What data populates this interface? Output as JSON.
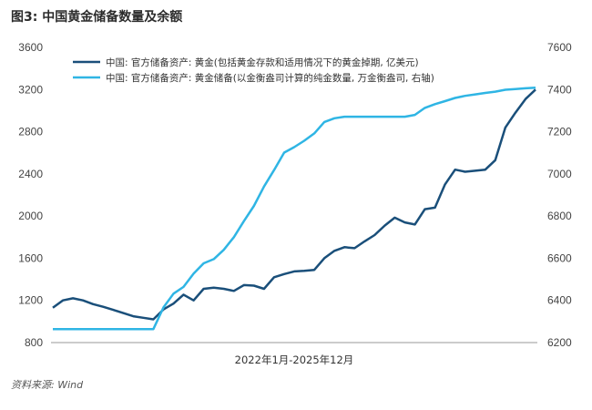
{
  "figure": {
    "title": "图3: 中国黄金储备数量及余额",
    "source": "资料来源: Wind"
  },
  "chart_data": {
    "type": "line",
    "xlabel": "2022年1月-2025年12月",
    "left_axis": {
      "ylim": [
        800,
        3600
      ],
      "ticks": [
        "800",
        "1200",
        "1600",
        "2000",
        "2400",
        "2800",
        "3200",
        "3600"
      ]
    },
    "right_axis": {
      "ylim": [
        6200,
        7600
      ],
      "ticks": [
        "6200",
        "6400",
        "6600",
        "6800",
        "7000",
        "7200",
        "7400",
        "7600"
      ]
    },
    "grid": false,
    "legend": "top-center",
    "series": [
      {
        "name": "中国: 官方储备资产: 黄金(包括黄金存款和适用情况下的黄金掉期, 亿美元)",
        "axis": "left",
        "color": "#1a4f7a",
        "values": [
          1130,
          1200,
          1220,
          1200,
          1165,
          1140,
          1110,
          1080,
          1050,
          1035,
          1020,
          1115,
          1170,
          1255,
          1200,
          1310,
          1320,
          1310,
          1290,
          1345,
          1340,
          1310,
          1420,
          1450,
          1475,
          1480,
          1490,
          1600,
          1670,
          1705,
          1695,
          1760,
          1820,
          1910,
          1985,
          1940,
          1920,
          2065,
          2080,
          2300,
          2440,
          2420,
          2430,
          2440,
          2530,
          2840,
          2980,
          3110,
          3200
        ]
      },
      {
        "name": "中国: 官方储备资产: 黄金储备(以金衡盎司计算的纯金数量, 万金衡盎司, 右轴)",
        "axis": "right",
        "color": "#2fb5e4",
        "values": [
          6264,
          6264,
          6264,
          6264,
          6264,
          6264,
          6264,
          6264,
          6264,
          6264,
          6264,
          6367,
          6432,
          6464,
          6527,
          6576,
          6596,
          6640,
          6700,
          6776,
          6848,
          6940,
          7018,
          7101,
          7127,
          7157,
          7192,
          7246,
          7264,
          7271,
          7271,
          7271,
          7271,
          7271,
          7271,
          7271,
          7280,
          7313,
          7331,
          7345,
          7360,
          7370,
          7377,
          7384,
          7390,
          7399,
          7402,
          7406,
          7409
        ]
      }
    ]
  }
}
